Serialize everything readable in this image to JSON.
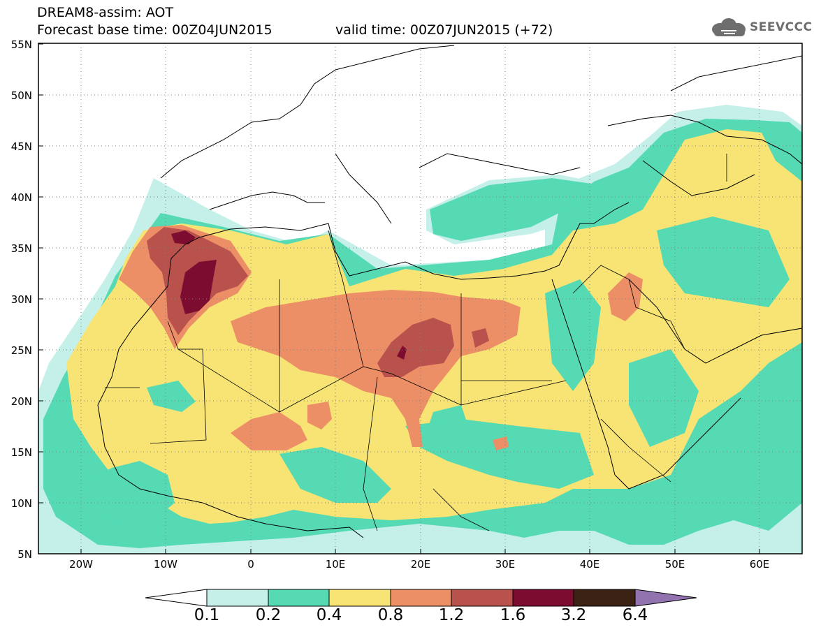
{
  "header": {
    "title": "DREAM8-assim: AOT",
    "base_time": "Forecast base time: 00Z04JUN2015",
    "valid_time": "valid time: 00Z07JUN2015 (+72)",
    "logo_text": "SEEVCCC"
  },
  "map": {
    "lat_labels": [
      "55N",
      "50N",
      "45N",
      "40N",
      "35N",
      "30N",
      "25N",
      "20N",
      "15N",
      "10N",
      "5N"
    ],
    "lon_labels": [
      "20W",
      "10W",
      "0",
      "10E",
      "20E",
      "30E",
      "40E",
      "50E",
      "60E"
    ],
    "lat_range": [
      5,
      55
    ],
    "lon_range": [
      -25,
      65
    ],
    "grid": true
  },
  "colorbar": {
    "labels": [
      "0.1",
      "0.2",
      "0.4",
      "0.8",
      "1.2",
      "1.6",
      "3.2",
      "6.4"
    ],
    "colors": [
      "#c5f0ea",
      "#55dab4",
      "#f7e474",
      "#ec8e66",
      "#b9524c",
      "#7d0d30",
      "#3b2215",
      "#9273b0"
    ]
  }
}
